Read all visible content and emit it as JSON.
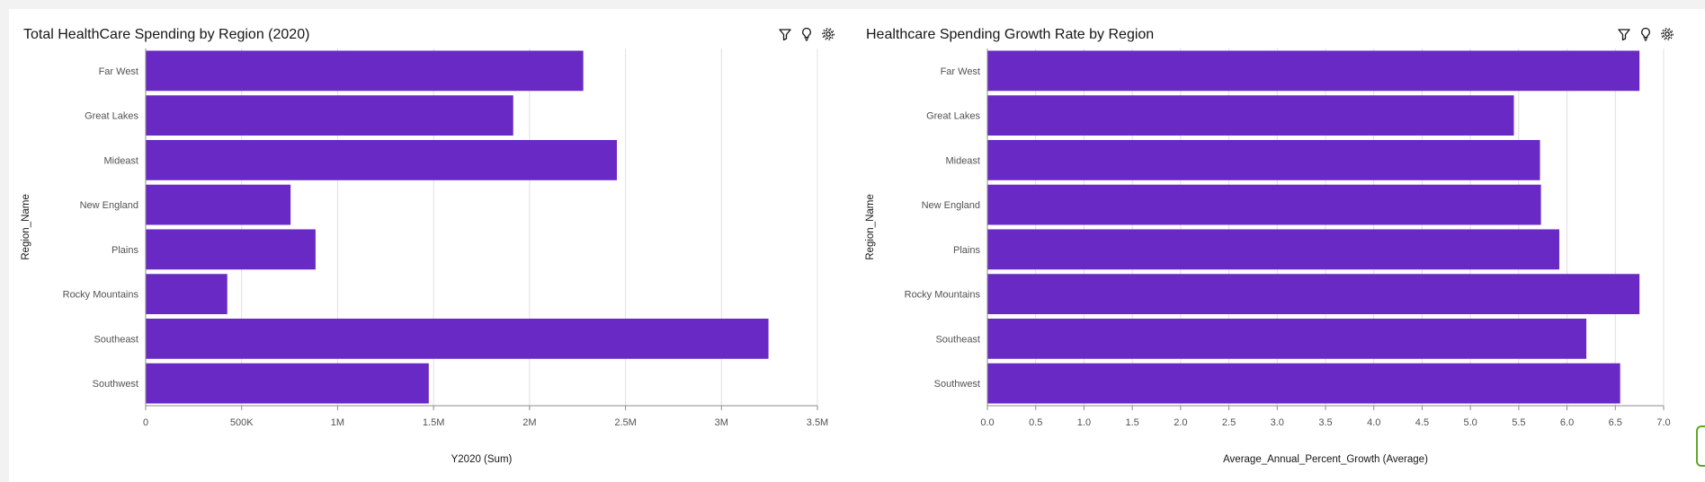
{
  "colors": {
    "bar": "#6929c4",
    "grid": "#e0e0e0",
    "axis": "#8d8d8d"
  },
  "toolbar_icons": [
    "filter-icon",
    "lightbulb-icon",
    "settings-icon"
  ],
  "chart_data": [
    {
      "type": "bar",
      "orientation": "horizontal",
      "title": "Total HealthCare Spending by Region (2020)",
      "xlabel": "Y2020 (Sum)",
      "ylabel": "Region_Name",
      "categories": [
        "Far West",
        "Great Lakes",
        "Mideast",
        "New England",
        "Plains",
        "Rocky Mountains",
        "Southeast",
        "Southwest"
      ],
      "values": [
        2280000,
        1915000,
        2455000,
        755000,
        885000,
        425000,
        3245000,
        1475000
      ],
      "xlim": [
        0,
        3500000
      ],
      "xticks": [
        0,
        500000,
        1000000,
        1500000,
        2000000,
        2500000,
        3000000,
        3500000
      ],
      "xtick_labels": [
        "0",
        "500K",
        "1M",
        "1.5M",
        "2M",
        "2.5M",
        "3M",
        "3.5M"
      ],
      "grid": true
    },
    {
      "type": "bar",
      "orientation": "horizontal",
      "title": "Healthcare Spending Growth Rate by Region",
      "xlabel": "Average_Annual_Percent_Growth (Average)",
      "ylabel": "Region_Name",
      "categories": [
        "Far West",
        "Great Lakes",
        "Mideast",
        "New England",
        "Plains",
        "Rocky Mountains",
        "Southeast",
        "Southwest"
      ],
      "values": [
        6.75,
        5.45,
        5.72,
        5.73,
        5.92,
        6.75,
        6.2,
        6.55
      ],
      "xlim": [
        0,
        7.0
      ],
      "xticks": [
        0,
        0.5,
        1,
        1.5,
        2,
        2.5,
        3,
        3.5,
        4,
        4.5,
        5,
        5.5,
        6,
        6.5,
        7
      ],
      "xtick_labels": [
        "0.0",
        "0.5",
        "1.0",
        "1.5",
        "2.0",
        "2.5",
        "3.0",
        "3.5",
        "4.0",
        "4.5",
        "5.0",
        "5.5",
        "6.0",
        "6.5",
        "7.0"
      ],
      "grid": true
    }
  ]
}
